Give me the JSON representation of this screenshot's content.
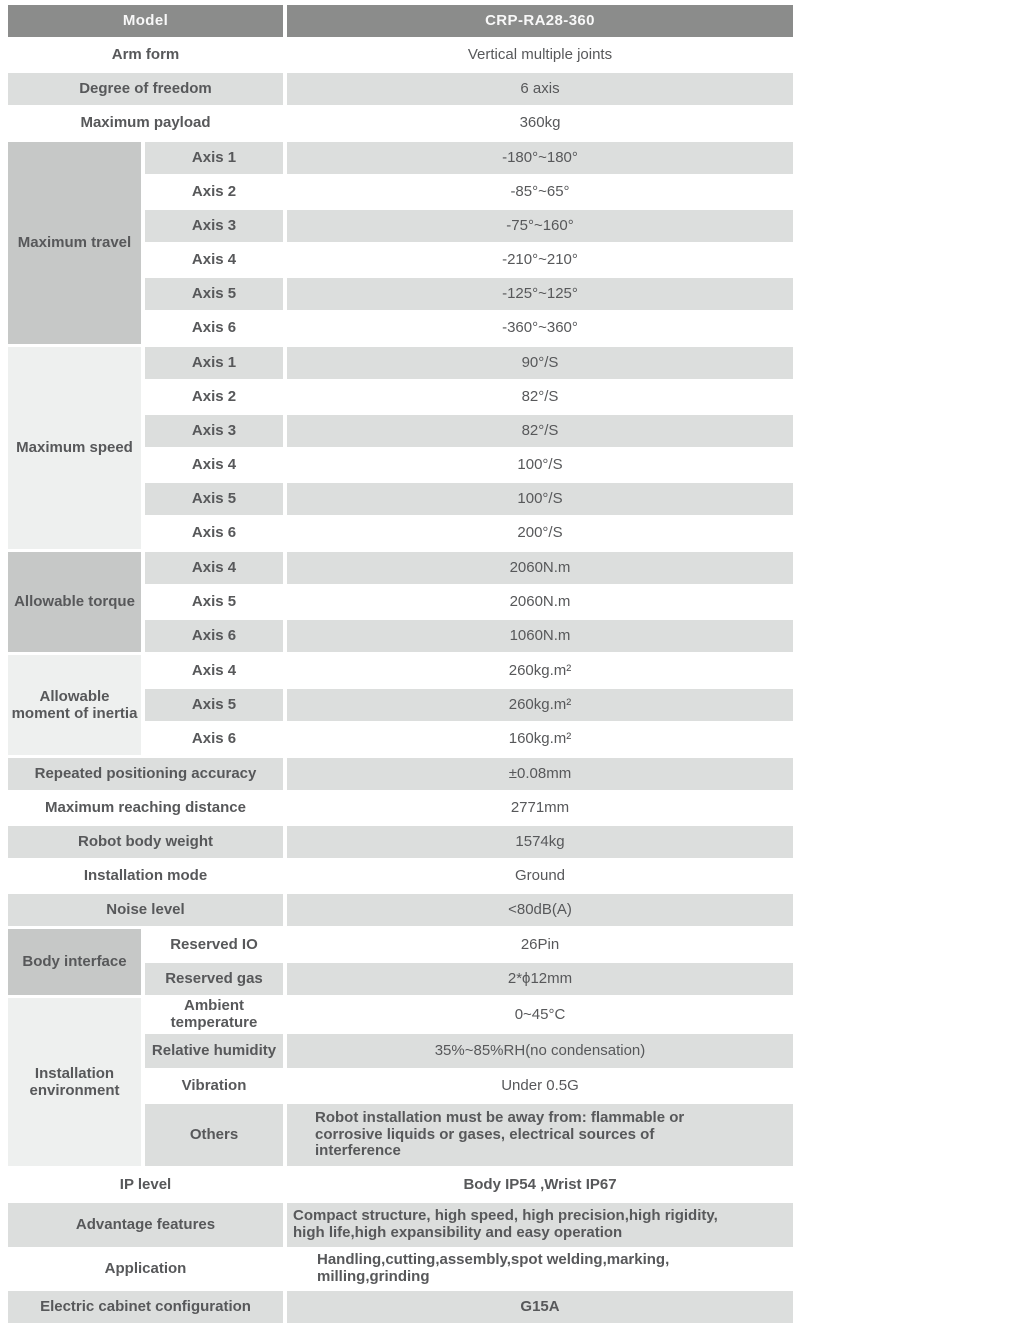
{
  "colors": {
    "header_bg": "#8b8c8b",
    "header_text": "#f8f8f8",
    "row_gray": "#dcdedd",
    "group_dark_gray": "#c6c8c7",
    "group_light_gray": "#eef0ef",
    "text": "#57585a"
  },
  "model": {
    "label": "Model",
    "value": "CRP-RA28-360"
  },
  "top": [
    {
      "label": "Arm form",
      "value": "Vertical multiple joints"
    },
    {
      "label": "Degree of freedom",
      "value": "6 axis"
    },
    {
      "label": "Maximum payload",
      "value": "360kg"
    }
  ],
  "travel": {
    "label": "Maximum travel",
    "rows": [
      {
        "axis": "Axis 1",
        "value": "-180°~180°"
      },
      {
        "axis": "Axis 2",
        "value": "-85°~65°"
      },
      {
        "axis": "Axis 3",
        "value": "-75°~160°"
      },
      {
        "axis": "Axis 4",
        "value": "-210°~210°"
      },
      {
        "axis": "Axis 5",
        "value": "-125°~125°"
      },
      {
        "axis": "Axis 6",
        "value": "-360°~360°"
      }
    ]
  },
  "speed": {
    "label": "Maximum speed",
    "rows": [
      {
        "axis": "Axis 1",
        "value": "90°/S"
      },
      {
        "axis": "Axis 2",
        "value": "82°/S"
      },
      {
        "axis": "Axis 3",
        "value": "82°/S"
      },
      {
        "axis": "Axis 4",
        "value": "100°/S"
      },
      {
        "axis": "Axis 5",
        "value": "100°/S"
      },
      {
        "axis": "Axis 6",
        "value": "200°/S"
      }
    ]
  },
  "torque": {
    "label": "Allowable torque",
    "rows": [
      {
        "axis": "Axis 4",
        "value": "2060N.m"
      },
      {
        "axis": "Axis 5",
        "value": "2060N.m"
      },
      {
        "axis": "Axis 6",
        "value": "1060N.m"
      }
    ]
  },
  "inertia": {
    "label": "Allowable moment of inertia",
    "rows": [
      {
        "axis": "Axis 4",
        "value": "260kg.m²"
      },
      {
        "axis": "Axis 5",
        "value": "260kg.m²"
      },
      {
        "axis": "Axis 6",
        "value": "160kg.m²"
      }
    ]
  },
  "mid": [
    {
      "label": "Repeated positioning accuracy",
      "value": "±0.08mm"
    },
    {
      "label": "Maximum reaching distance",
      "value": "2771mm"
    },
    {
      "label": "Robot body weight",
      "value": "1574kg"
    },
    {
      "label": "Installation mode",
      "value": "Ground"
    },
    {
      "label": "Noise level",
      "value": "<80dB(A)"
    }
  ],
  "body_if": {
    "label": "Body interface",
    "rows": [
      {
        "sub": "Reserved IO",
        "value": "26Pin"
      },
      {
        "sub": "Reserved gas",
        "value": "2*ϕ12mm"
      }
    ]
  },
  "env": {
    "label": "Installation environment",
    "rows": [
      {
        "sub": "Ambient temperature",
        "value": "0~45°C"
      },
      {
        "sub": "Relative humidity",
        "value": "35%~85%RH(no condensation)"
      },
      {
        "sub": "Vibration",
        "value": "Under 0.5G"
      },
      {
        "sub": "Others",
        "value": "Robot installation must be away from: flammable or corrosive liquids or gases, electrical sources of interference"
      }
    ]
  },
  "bottom": [
    {
      "label": "IP level",
      "value": "Body IP54 ,Wrist IP67"
    },
    {
      "label": "Advantage features",
      "value": "Compact structure, high speed, high precision,high rigidity, high life,high expansibility and easy operation"
    },
    {
      "label": "Application",
      "value": "Handling,cutting,assembly,spot welding,marking, milling,grinding"
    },
    {
      "label": "Electric cabinet configuration",
      "value": "G15A"
    }
  ]
}
